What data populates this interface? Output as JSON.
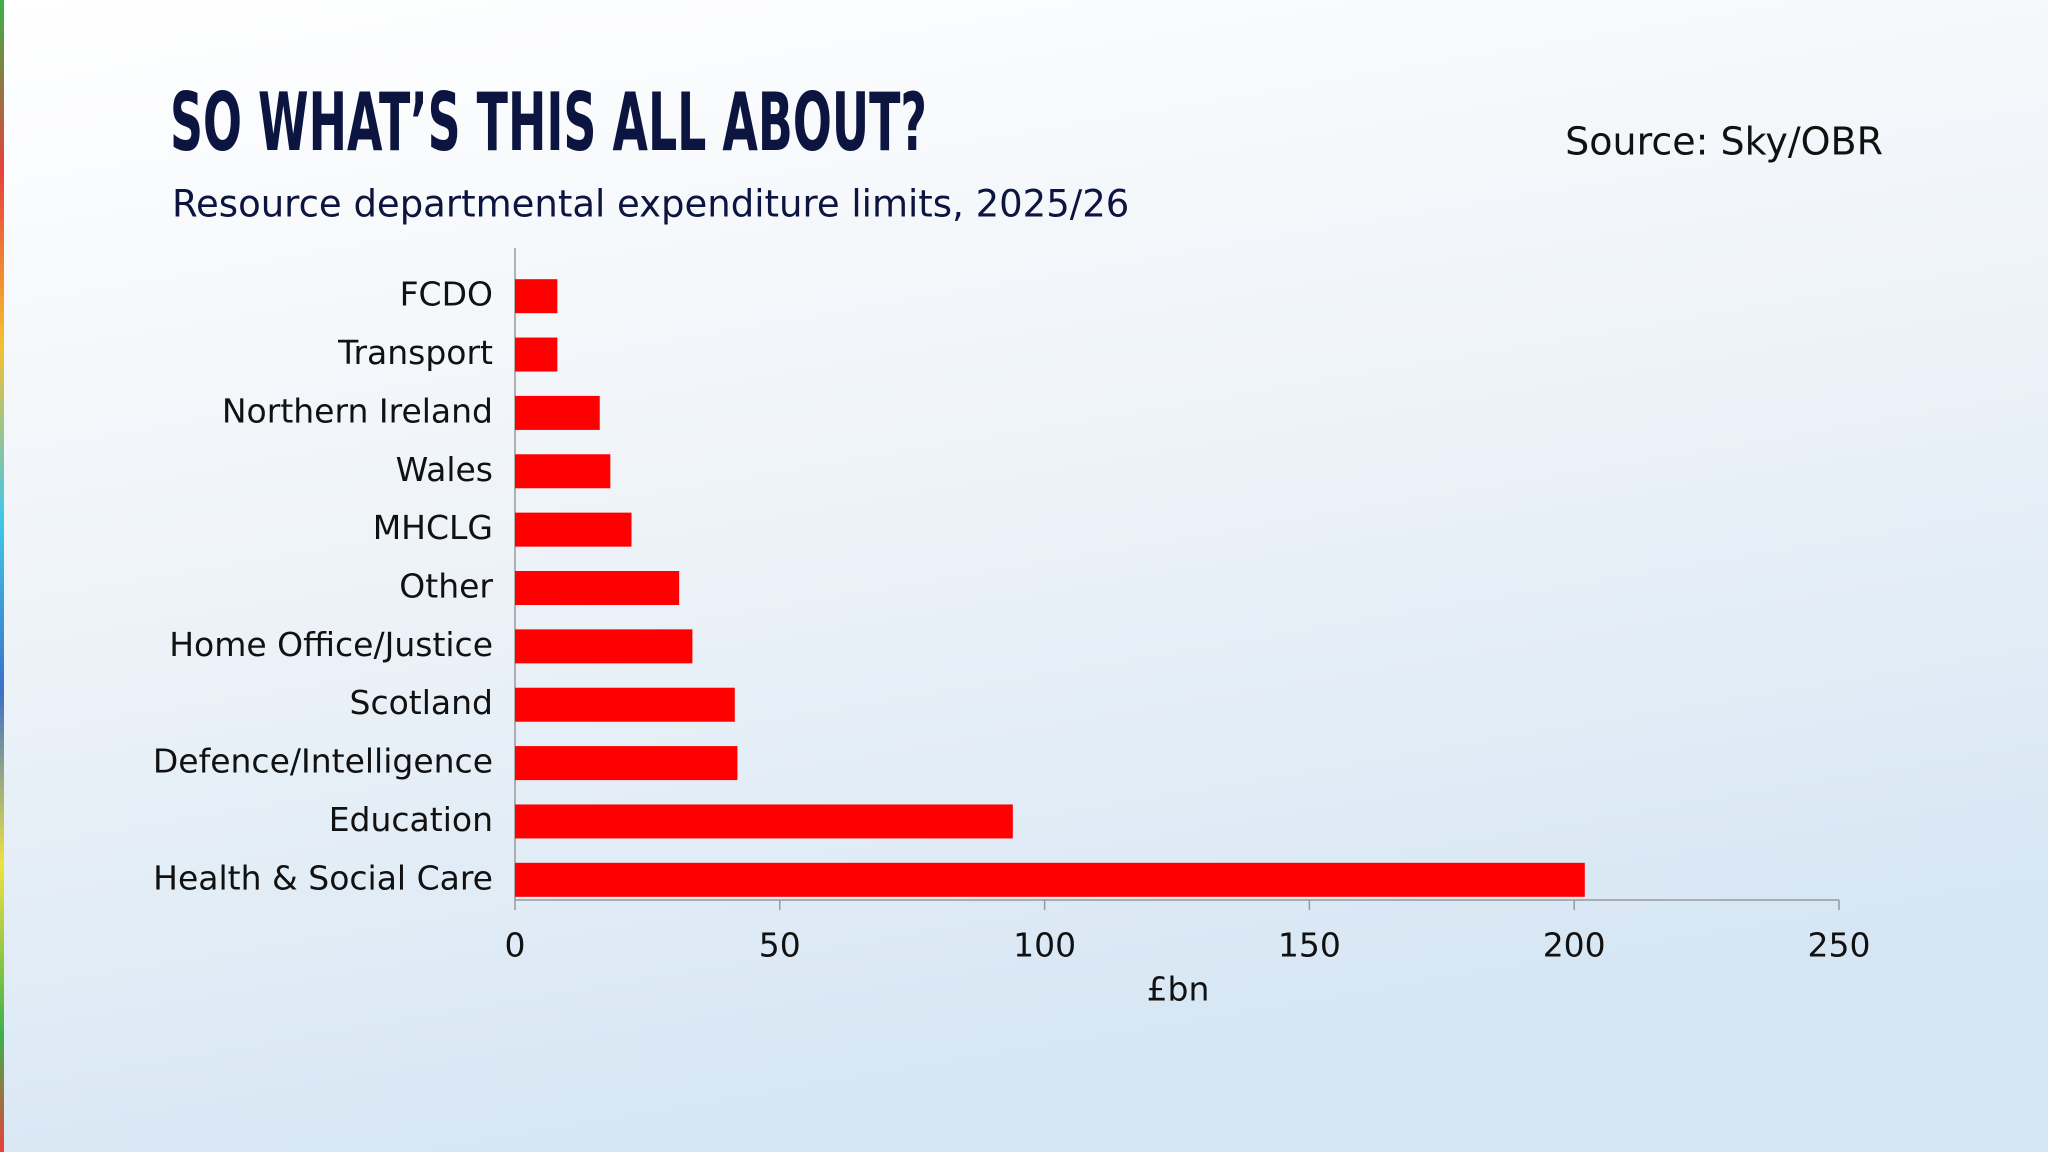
{
  "chart_data": {
    "type": "bar",
    "title": "SO WHAT’S THIS ALL ABOUT?",
    "subtitle": "Resource departmental expenditure limits, 2025/26",
    "source": "Source: Sky/OBR",
    "x_label": "£bn",
    "categories": [
      "FCDO",
      "Transport",
      "Northern Ireland",
      "Wales",
      "MHCLG",
      "Other",
      "Home Office/Justice",
      "Scotland",
      "Defence/Intelligence",
      "Education",
      "Health & Social Care"
    ],
    "values": [
      8,
      8,
      16,
      18,
      22,
      31,
      33.5,
      41.5,
      42,
      94,
      202
    ],
    "color": "#ff0000",
    "xlim": [
      0,
      250
    ],
    "xticks": [
      0,
      50,
      100,
      150,
      200,
      250
    ]
  }
}
